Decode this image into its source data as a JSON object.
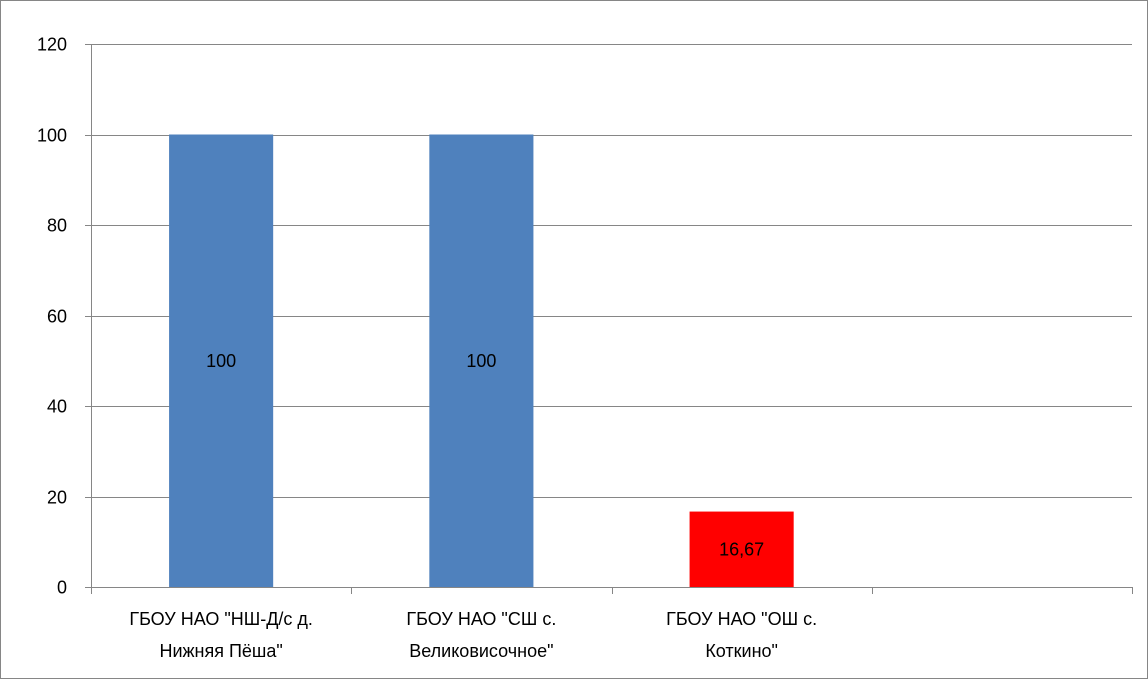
{
  "chart_data": {
    "type": "bar",
    "categories": [
      [
        "ГБОУ НАО \"НШ-Д/с д.",
        "Нижняя Пёша\""
      ],
      [
        "ГБОУ НАО \"СШ с.",
        "Великовисочное\""
      ],
      [
        "ГБОУ НАО \"ОШ с.",
        "Коткино\""
      ],
      [
        ""
      ]
    ],
    "values": [
      100,
      100,
      16.67,
      null
    ],
    "data_labels": [
      "100",
      "100",
      "16,67",
      ""
    ],
    "bar_colors": [
      "#4F81BD",
      "#4F81BD",
      "#FF0000",
      "#4F81BD"
    ],
    "title": "",
    "xlabel": "",
    "ylabel": "",
    "ylim": [
      0,
      120
    ],
    "yticks": [
      0,
      20,
      40,
      60,
      80,
      100,
      120
    ],
    "ytick_labels": [
      "0",
      "20",
      "40",
      "60",
      "80",
      "100",
      "120"
    ],
    "grid": true,
    "legend": "none"
  }
}
